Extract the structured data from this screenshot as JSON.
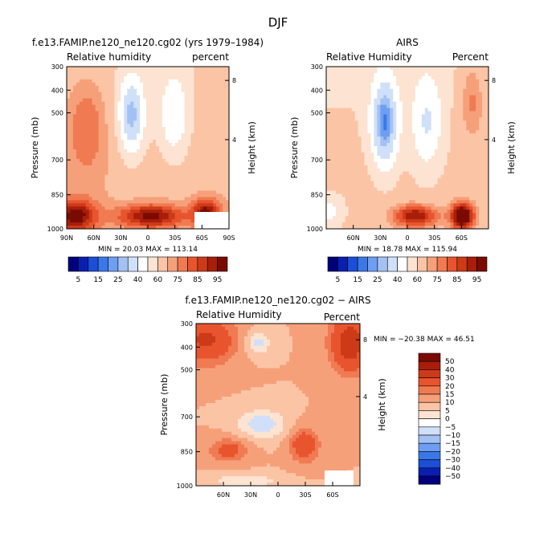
{
  "figure_title": "DJF",
  "colors": {
    "scale": [
      "#00007a",
      "#0a1fb0",
      "#1c4ed8",
      "#3a78e8",
      "#6e9ef2",
      "#a3c1f4",
      "#d0e0f8",
      "#ffffff",
      "#fde3d2",
      "#fbc4a5",
      "#f6a07a",
      "#f07a52",
      "#e8542e",
      "#cc3a18",
      "#a81e0a",
      "#7a0b02"
    ]
  },
  "chart_data": [
    {
      "type": "heatmap",
      "id": "model",
      "title": "f.e13.FAMIP.ne120_ne120.cg02 (yrs 1979–1984)",
      "left_label": "Relative humidity",
      "right_label": "percent",
      "ylabel": "Pressure (mb)",
      "y2label": "Height (km)",
      "x_ticks": [
        "90N",
        "60N",
        "30N",
        "0",
        "30S",
        "60S",
        "90S"
      ],
      "y_ticks": [
        "300",
        "400",
        "500",
        "700",
        "850",
        "1000"
      ],
      "height_ticks": [
        "8",
        "4"
      ],
      "min_max": "MIN = 20.03   MAX = 113.14",
      "colorbar_labels": [
        "5",
        "15",
        "25",
        "40",
        "60",
        "75",
        "85",
        "95"
      ]
    },
    {
      "type": "heatmap",
      "id": "airs",
      "title": "AIRS",
      "left_label": "Relative Humidity",
      "right_label": "Percent",
      "ylabel": "Pressure (mb)",
      "y2label": "Height (km)",
      "x_ticks": [
        "60N",
        "30N",
        "0",
        "30S",
        "60S"
      ],
      "y_ticks": [
        "300",
        "400",
        "500",
        "700",
        "850",
        "1000"
      ],
      "height_ticks": [
        "8",
        "4"
      ],
      "min_max": "MIN = 18.78   MAX = 115.94",
      "colorbar_labels": [
        "5",
        "15",
        "25",
        "40",
        "60",
        "75",
        "85",
        "95"
      ]
    },
    {
      "type": "heatmap",
      "id": "diff",
      "title": "f.e13.FAMIP.ne120_ne120.cg02 − AIRS",
      "left_label": "Relative Humidity",
      "right_label": "Percent",
      "ylabel": "Pressure (mb)",
      "y2label": "Height (km)",
      "x_ticks": [
        "60N",
        "30N",
        "0",
        "30S",
        "60S"
      ],
      "y_ticks": [
        "300",
        "400",
        "500",
        "700",
        "850",
        "1000"
      ],
      "height_ticks": [
        "8",
        "4"
      ],
      "min_max": "MIN = −20.38   MAX =  46.51",
      "colorbar_labels": [
        "50",
        "40",
        "30",
        "20",
        "15",
        "10",
        "5",
        "0",
        "−5",
        "−10",
        "−15",
        "−20",
        "−30",
        "−40",
        "−50"
      ]
    }
  ]
}
